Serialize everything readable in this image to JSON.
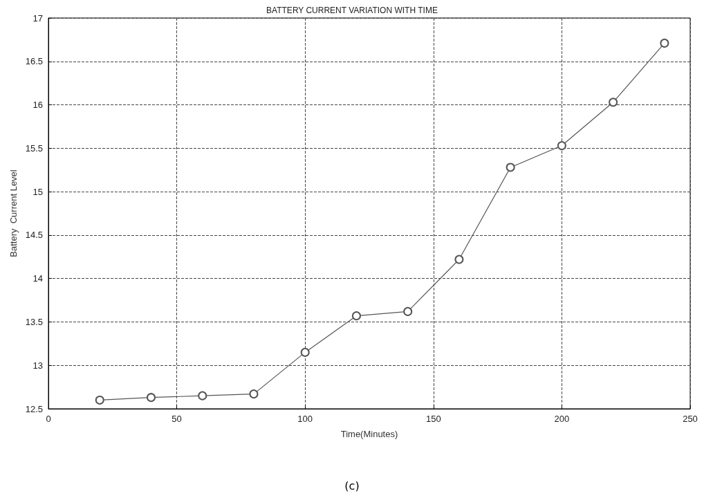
{
  "chart_data": {
    "type": "line",
    "title": "BATTERY CURRENT VARIATION WITH TIME",
    "xlabel": "Time(Minutes)",
    "ylabel": "Battery  Current Level",
    "annotations": [
      "(c)"
    ],
    "x": [
      20,
      40,
      60,
      80,
      100,
      120,
      140,
      160,
      180,
      200,
      220,
      240
    ],
    "series": [
      {
        "color": "#555555",
        "values": [
          12.6,
          12.63,
          12.65,
          12.67,
          13.15,
          13.57,
          13.62,
          14.22,
          15.28,
          15.53,
          16.03,
          16.71
        ]
      }
    ],
    "xlim": [
      0,
      250
    ],
    "xticks": [
      0,
      50,
      100,
      150,
      200,
      250
    ],
    "ylim": [
      12.5,
      17
    ],
    "yticks": [
      12.5,
      13,
      13.5,
      14,
      14.5,
      15,
      15.5,
      16,
      16.5,
      17
    ],
    "grid": true,
    "marker": "circle",
    "line_style": "solid"
  }
}
